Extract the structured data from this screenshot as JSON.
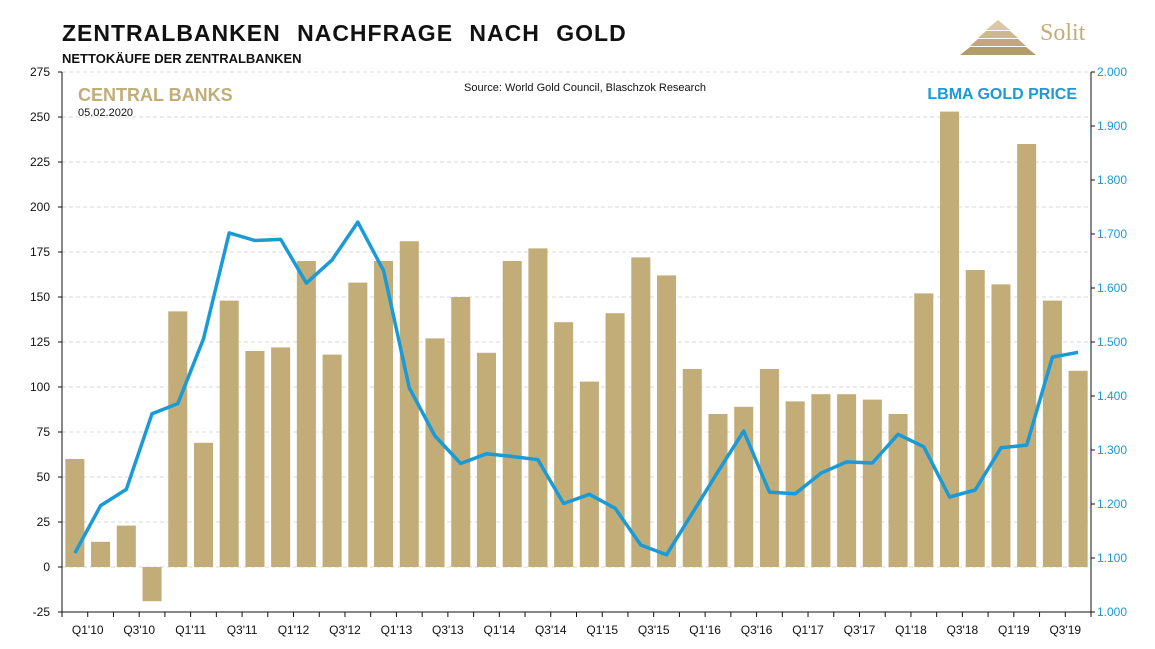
{
  "header": {
    "title": "ZENTRALBANKEN NACHFRAGE NACH GOLD",
    "subtitle": "NETTOKÄUFE DER ZENTRALBANKEN",
    "logo_text": "Solit"
  },
  "colors": {
    "bar": "#c2ac78",
    "line": "#1a9ad6",
    "left_axis_label": "#c2ac78",
    "right_axis_label": "#1a9ad6"
  },
  "chart_data": {
    "type": "bar",
    "source": "Source: World Gold Council, Blaschzok Research",
    "date": "05.02.2020",
    "categories": [
      "Q1'10",
      "Q2'10",
      "Q3'10",
      "Q4'10",
      "Q1'11",
      "Q2'11",
      "Q3'11",
      "Q4'11",
      "Q1'12",
      "Q2'12",
      "Q3'12",
      "Q4'12",
      "Q1'13",
      "Q2'13",
      "Q3'13",
      "Q4'13",
      "Q1'14",
      "Q2'14",
      "Q3'14",
      "Q4'14",
      "Q1'15",
      "Q2'15",
      "Q3'15",
      "Q4'15",
      "Q1'16",
      "Q2'16",
      "Q3'16",
      "Q4'16",
      "Q1'17",
      "Q2'17",
      "Q3'17",
      "Q4'17",
      "Q1'18",
      "Q2'18",
      "Q3'18",
      "Q4'18",
      "Q1'19",
      "Q2'19",
      "Q3'19",
      "Q4'19"
    ],
    "x_tick_labels": [
      "Q1'10",
      "Q3'10",
      "Q1'11",
      "Q3'11",
      "Q1'12",
      "Q3'12",
      "Q1'13",
      "Q3'13",
      "Q1'14",
      "Q3'14",
      "Q1'15",
      "Q3'15",
      "Q1'16",
      "Q3'16",
      "Q1'17",
      "Q3'17",
      "Q1'18",
      "Q3'18",
      "Q1'19",
      "Q3'19"
    ],
    "series": [
      {
        "name": "CENTRAL BANKS",
        "type": "bar",
        "axis": "left",
        "values": [
          60,
          14,
          23,
          -19,
          142,
          69,
          148,
          120,
          122,
          170,
          118,
          158,
          170,
          181,
          127,
          150,
          119,
          170,
          177,
          136,
          103,
          141,
          172,
          162,
          110,
          85,
          89,
          110,
          92,
          96,
          96,
          93,
          85,
          152,
          253,
          165,
          157,
          235,
          148,
          109
        ]
      },
      {
        "name": "LBMA GOLD PRICE",
        "type": "line",
        "axis": "right",
        "values": [
          1109,
          1197,
          1227,
          1367,
          1386,
          1506,
          1702,
          1688,
          1690,
          1609,
          1652,
          1722,
          1632,
          1415,
          1326,
          1275,
          1293,
          1288,
          1282,
          1201,
          1218,
          1192,
          1124,
          1106,
          1183,
          1260,
          1335,
          1222,
          1219,
          1257,
          1278,
          1276,
          1329,
          1306,
          1213,
          1226,
          1304,
          1309,
          1472,
          1481
        ]
      }
    ],
    "left_axis": {
      "ylim": [
        -25,
        275
      ],
      "ticks": [
        "275",
        "250",
        "225",
        "200",
        "175",
        "150",
        "125",
        "100",
        "75",
        "50",
        "25",
        "0",
        "-25"
      ]
    },
    "right_axis": {
      "ylim": [
        1000,
        2000
      ],
      "ticks": [
        "2.000",
        "1.900",
        "1.800",
        "1.700",
        "1.600",
        "1.500",
        "1.400",
        "1.300",
        "1.200",
        "1.100",
        "1.000"
      ]
    },
    "grid": "horizontal-dashed"
  }
}
